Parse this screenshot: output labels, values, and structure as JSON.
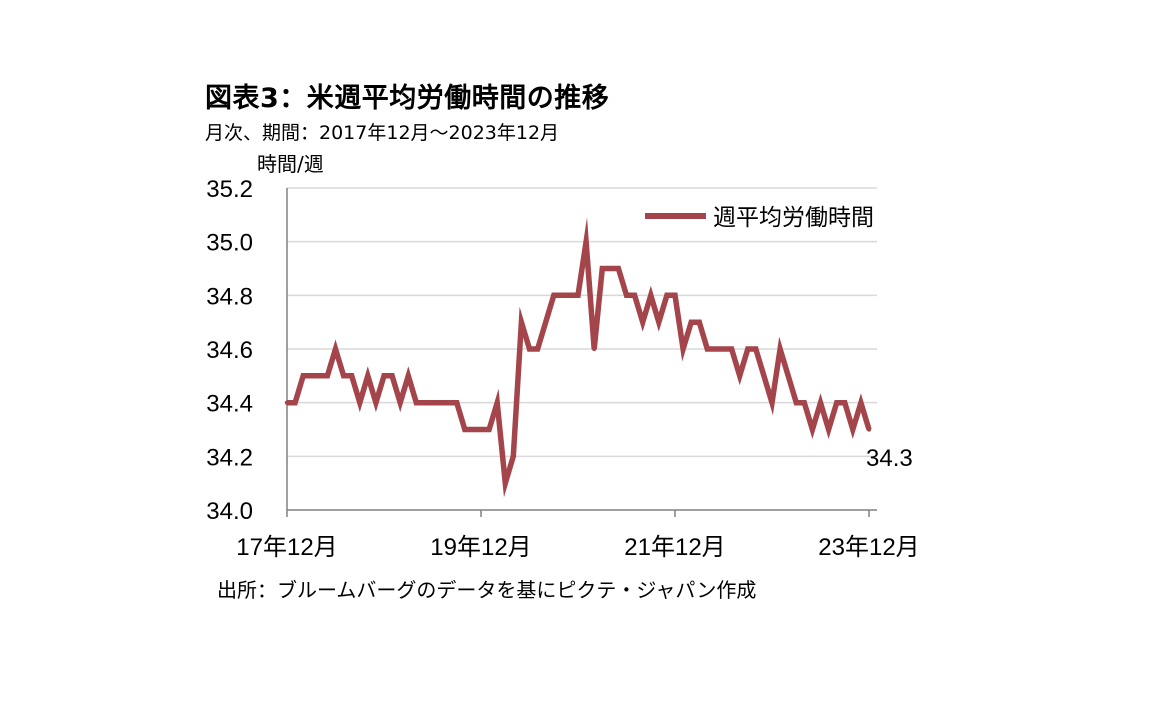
{
  "header": {
    "title": "図表3：米週平均労働時間の推移",
    "subtitle": "月次、期間：2017年12月～2023年12月"
  },
  "footer": {
    "source": "出所：ブルームバーグのデータを基にピクテ・ジャパン作成"
  },
  "chart_data": {
    "type": "line",
    "title": "図表3：米週平均労働時間の推移",
    "subtitle": "月次、期間：2017年12月～2023年12月",
    "ylabel": "時間/週",
    "xlabel": "",
    "ylim": [
      34.0,
      35.2
    ],
    "yticks": [
      "34.0",
      "34.2",
      "34.4",
      "34.6",
      "34.8",
      "35.0",
      "35.2"
    ],
    "xlim": [
      "2017-12",
      "2023-12"
    ],
    "xticks": [
      {
        "x": "2017-12",
        "label": "17年12月"
      },
      {
        "x": "2019-12",
        "label": "19年12月"
      },
      {
        "x": "2021-12",
        "label": "21年12月"
      },
      {
        "x": "2023-12",
        "label": "23年12月"
      }
    ],
    "grid": true,
    "legend_position": "top-right",
    "end_label": "34.3",
    "series": [
      {
        "name": "週平均労働時間",
        "color": "#a4454b",
        "x": [
          "2017-12",
          "2018-01",
          "2018-02",
          "2018-03",
          "2018-04",
          "2018-05",
          "2018-06",
          "2018-07",
          "2018-08",
          "2018-09",
          "2018-10",
          "2018-11",
          "2018-12",
          "2019-01",
          "2019-02",
          "2019-03",
          "2019-04",
          "2019-05",
          "2019-06",
          "2019-07",
          "2019-08",
          "2019-09",
          "2019-10",
          "2019-11",
          "2019-12",
          "2020-01",
          "2020-02",
          "2020-03",
          "2020-04",
          "2020-05",
          "2020-06",
          "2020-07",
          "2020-08",
          "2020-09",
          "2020-10",
          "2020-11",
          "2020-12",
          "2021-01",
          "2021-02",
          "2021-03",
          "2021-04",
          "2021-05",
          "2021-06",
          "2021-07",
          "2021-08",
          "2021-09",
          "2021-10",
          "2021-11",
          "2021-12",
          "2022-01",
          "2022-02",
          "2022-03",
          "2022-04",
          "2022-05",
          "2022-06",
          "2022-07",
          "2022-08",
          "2022-09",
          "2022-10",
          "2022-11",
          "2022-12",
          "2023-01",
          "2023-02",
          "2023-03",
          "2023-04",
          "2023-05",
          "2023-06",
          "2023-07",
          "2023-08",
          "2023-09",
          "2023-10",
          "2023-11",
          "2023-12"
        ],
        "values": [
          34.4,
          34.4,
          34.5,
          34.5,
          34.5,
          34.5,
          34.6,
          34.5,
          34.5,
          34.4,
          34.5,
          34.4,
          34.5,
          34.5,
          34.4,
          34.5,
          34.4,
          34.4,
          34.4,
          34.4,
          34.4,
          34.4,
          34.3,
          34.3,
          34.3,
          34.3,
          34.4,
          34.1,
          34.2,
          34.7,
          34.6,
          34.6,
          34.7,
          34.8,
          34.8,
          34.8,
          34.8,
          35.0,
          34.6,
          34.9,
          34.9,
          34.9,
          34.8,
          34.8,
          34.7,
          34.8,
          34.7,
          34.8,
          34.8,
          34.6,
          34.7,
          34.7,
          34.6,
          34.6,
          34.6,
          34.6,
          34.5,
          34.6,
          34.6,
          34.5,
          34.4,
          34.6,
          34.5,
          34.4,
          34.4,
          34.3,
          34.4,
          34.3,
          34.4,
          34.4,
          34.3,
          34.4,
          34.3
        ]
      }
    ]
  }
}
